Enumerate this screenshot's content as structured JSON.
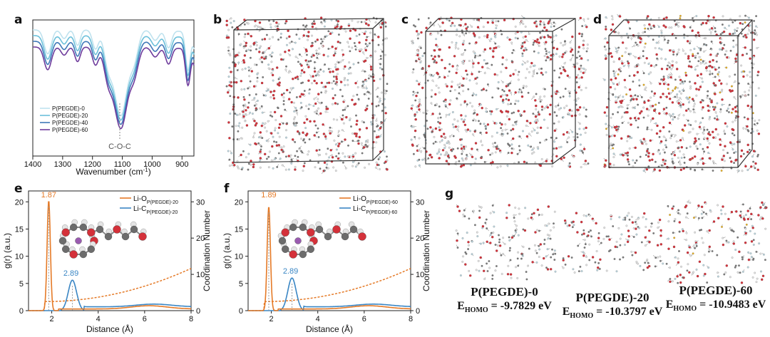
{
  "labels": {
    "a": "a",
    "b": "b",
    "c": "c",
    "d": "d",
    "e": "e",
    "f": "f",
    "g": "g"
  },
  "panel_a": {
    "xlabel": "Wavenumber (cm",
    "xlabel_sup": "-1",
    "xlabel_end": ")",
    "annotation": "C-O-C",
    "legend": [
      "P(PEGDE)-0",
      "P(PEGDE)-20",
      "P(PEGDE)-40",
      "P(PEGDE)-60"
    ],
    "colors": [
      "#bfe2ee",
      "#6cc0da",
      "#3f78b8",
      "#6f3c9c"
    ]
  },
  "chart_data": [
    {
      "type": "line",
      "panel": "a",
      "x_ticks": [
        1400,
        1300,
        1200,
        1100,
        1000,
        900
      ],
      "xlim": [
        1400,
        860
      ],
      "series_names": [
        "P(PEGDE)-0",
        "P(PEGDE)-20",
        "P(PEGDE)-40",
        "P(PEGDE)-60"
      ]
    },
    {
      "type": "line",
      "panel": "e",
      "xlabel": "Distance (Å)",
      "ylabel": "g(r) (a.u.)",
      "y2label": "Coordination Number",
      "xlim": [
        1,
        8
      ],
      "x_ticks": [
        2,
        4,
        6,
        8
      ],
      "y_ticks": [
        0,
        5,
        10,
        15,
        20
      ],
      "y2_ticks": [
        0,
        10,
        20,
        30
      ],
      "peak_labels": [
        "1.87",
        "2.89"
      ],
      "legend": [
        {
          "base": "Li-O",
          "sub": "P(PEGDE)-20"
        },
        {
          "base": "Li-C",
          "sub": "P(PEGDE)-20"
        }
      ],
      "peaks": {
        "O": {
          "x": 1.87,
          "y": 20.2
        },
        "C": {
          "x": 2.89,
          "y": 5.6
        }
      }
    },
    {
      "type": "line",
      "panel": "f",
      "xlabel": "Distance (Å)",
      "ylabel": "g(r) (a.u.)",
      "y2label": "Coordination Number",
      "xlim": [
        1,
        8
      ],
      "x_ticks": [
        2,
        4,
        6,
        8
      ],
      "y_ticks": [
        0,
        5,
        10,
        15,
        20
      ],
      "y2_ticks": [
        0,
        10,
        20,
        30
      ],
      "peak_labels": [
        "1.89",
        "2.89"
      ],
      "legend": [
        {
          "base": "Li-O",
          "sub": "P(PEGDE)-60"
        },
        {
          "base": "Li-C",
          "sub": "P(PEGDE)-60"
        }
      ],
      "peaks": {
        "O": {
          "x": 1.89,
          "y": 19.1
        },
        "C": {
          "x": 2.89,
          "y": 6.0
        }
      }
    }
  ],
  "panel_g": {
    "items": [
      {
        "name": "P(PEGDE)-0",
        "homo_prefix": "E",
        "homo_sub": "HOMO",
        "homo_value": " = -9.7829 eV"
      },
      {
        "name": "P(PEGDE)-20",
        "homo_prefix": "E",
        "homo_sub": "HOMO",
        "homo_value": " = -10.3797 eV"
      },
      {
        "name": "P(PEGDE)-60",
        "homo_prefix": "E",
        "homo_sub": "HOMO",
        "homo_value": " = -10.9483 eV"
      }
    ]
  },
  "colors": {
    "orange": "#e57a27",
    "blue": "#3a86c4",
    "oxygen": "#d4313a",
    "carbon": "#6c6c6c",
    "hydrogen": "#e4e4e4",
    "lithium": "#9a5bb0"
  }
}
